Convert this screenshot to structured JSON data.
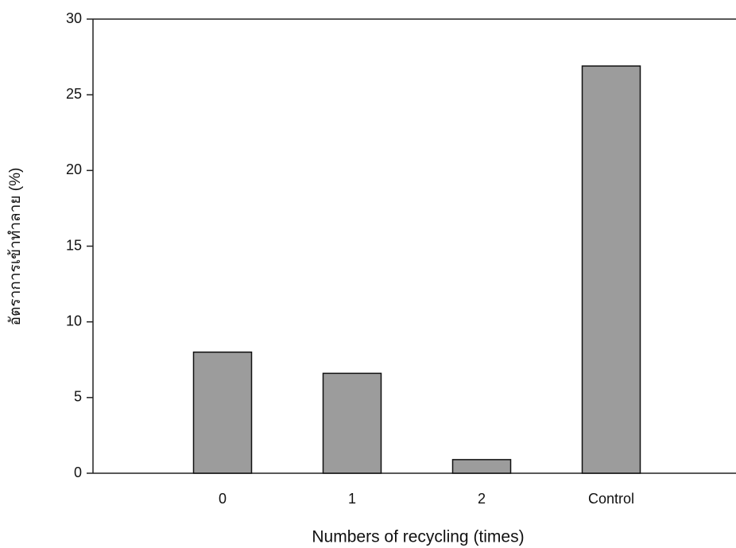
{
  "chart_data": {
    "type": "bar",
    "x_label": "Numbers  of  recycling  (times)",
    "y_label": "อัตราการเข้าทำลาย (%)",
    "categories": [
      "0",
      "1",
      "2",
      "Control"
    ],
    "values": [
      8,
      6.6,
      0.9,
      26.9
    ],
    "color": "#9c9c9c",
    "ylim": [
      0,
      30
    ],
    "yticks": [
      0,
      5,
      10,
      15,
      20,
      25,
      30
    ],
    "grid": false
  }
}
